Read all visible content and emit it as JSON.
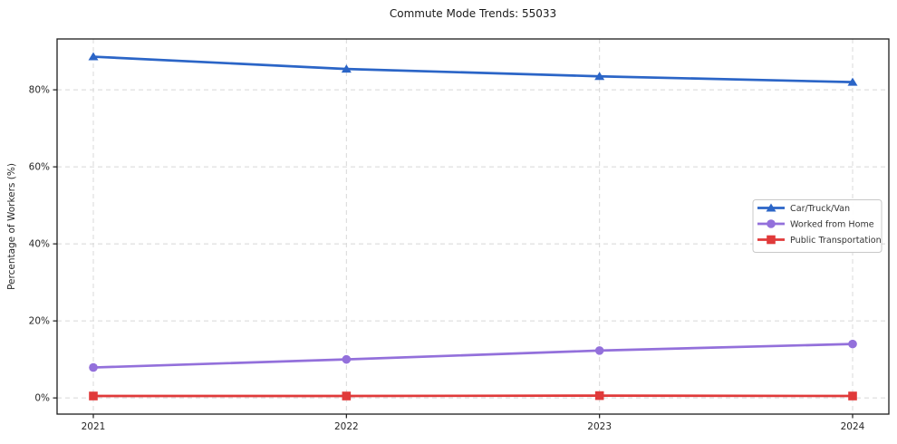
{
  "chart_data": {
    "type": "line",
    "title": "Commute Mode Trends: 55033",
    "xlabel": "",
    "ylabel": "Percentage of Workers (%)",
    "x": [
      2021,
      2022,
      2023,
      2024
    ],
    "x_tick_labels": [
      "2021",
      "2022",
      "2023",
      "2024"
    ],
    "y_ticks": [
      0,
      20,
      40,
      60,
      80
    ],
    "y_tick_labels": [
      "0%",
      "20%",
      "40%",
      "60%",
      "80%"
    ],
    "ylim": [
      -4.2,
      93.2
    ],
    "grid": true,
    "grid_style": "dashed",
    "legend_position": "center-right",
    "series": [
      {
        "name": "Car/Truck/Van",
        "color": "#2b65c7",
        "marker": "triangle",
        "values": [
          88.6,
          85.4,
          83.5,
          82.0
        ]
      },
      {
        "name": "Worked from Home",
        "color": "#9370db",
        "marker": "circle",
        "values": [
          7.9,
          10.0,
          12.3,
          14.0
        ]
      },
      {
        "name": "Public Transportation",
        "color": "#e03a3a",
        "marker": "square",
        "values": [
          0.5,
          0.5,
          0.6,
          0.5
        ]
      }
    ],
    "colors": {
      "spine": "#1c1c1c",
      "gridline": "#d8d8d8",
      "tick_text": "#262626",
      "legend_border": "#c8c8c8",
      "legend_text": "#333333",
      "background": "#ffffff"
    }
  }
}
